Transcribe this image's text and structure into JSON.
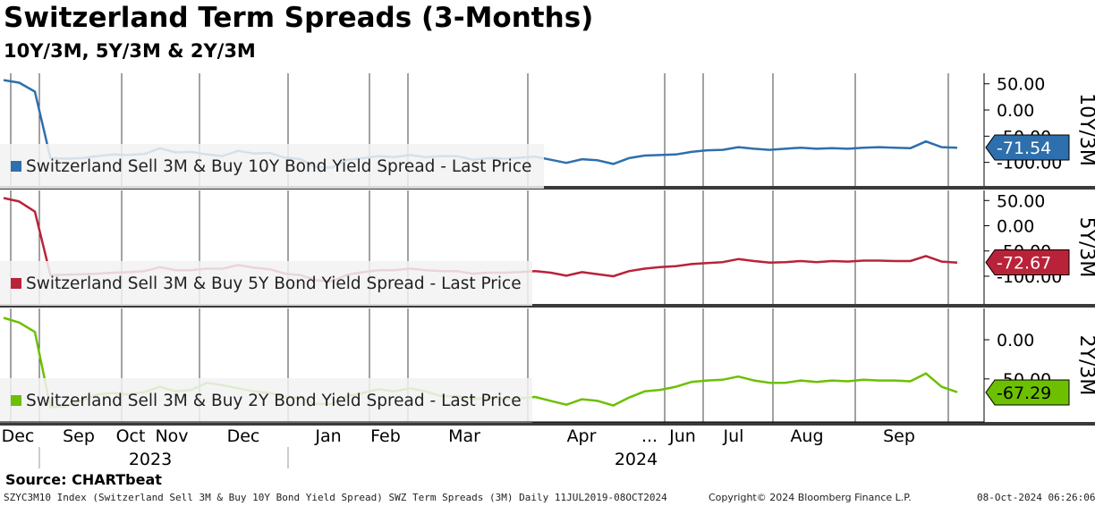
{
  "header": {
    "title": "Switzerland Term Spreads (3-Months)",
    "subtitle": "10Y/3M, 5Y/3M & 2Y/3M"
  },
  "footer": {
    "source": "Source: CHARTbeat",
    "ticker_info": "SZYC3M10 Index (Switzerland Sell 3M & Buy 10Y Bond Yield Spread) SWZ Term Spreads (3M)  Daily 11JUL2019-08OCT2024",
    "copyright": "Copyright© 2024 Bloomberg Finance L.P.",
    "timestamp": "08-Oct-2024 06:26:06"
  },
  "chart_data": {
    "type": "line",
    "x_axis": {
      "months": [
        {
          "label": "Dec",
          "date": "2022-12-01"
        },
        {
          "label": "Sep",
          "date": "2023-09-01"
        },
        {
          "label": "Oct",
          "date": "2023-10-01"
        },
        {
          "label": "Nov",
          "date": "2023-11-01"
        },
        {
          "label": "Dec",
          "date": "2023-12-01"
        },
        {
          "label": "Jan",
          "date": "2024-01-01"
        },
        {
          "label": "Feb",
          "date": "2024-02-01"
        },
        {
          "label": "Mar",
          "date": "2024-03-01"
        },
        {
          "label": "Apr",
          "date": "2024-04-01"
        },
        {
          "label": "Jun",
          "date": "2024-06-01"
        },
        {
          "label": "Jul",
          "date": "2024-07-01"
        },
        {
          "label": "Aug",
          "date": "2024-08-01"
        },
        {
          "label": "Sep",
          "date": "2024-09-01"
        }
      ],
      "break_label": "...",
      "years": [
        "2023",
        "2024"
      ]
    },
    "panels": [
      {
        "name": "10Y/3M",
        "legend": "Switzerland Sell 3M & Buy 10Y Bond Yield Spread - Last Price",
        "color": "#2e6fad",
        "last_value": "-71.54",
        "ticks": [
          "50.00",
          "0.00",
          "-50.00",
          "-100.00"
        ],
        "tick_values": [
          50,
          0,
          -50,
          -100
        ],
        "ylim": [
          -145,
          70
        ],
        "values": [
          57,
          52,
          35,
          -92,
          -93,
          -92,
          -88,
          -85,
          -86,
          -84,
          -73,
          -81,
          -80,
          -85,
          -88,
          -78,
          -83,
          -82,
          -91,
          -94,
          -109,
          -110,
          -95,
          -92,
          -88,
          -90,
          -86,
          -90,
          -88,
          -88,
          -95,
          -92,
          -93,
          -91,
          -89,
          -95,
          -101,
          -94,
          -96,
          -103,
          -92,
          -87,
          -86,
          -85,
          -80,
          -77,
          -76,
          -71,
          -74,
          -76,
          -74,
          -72,
          -74,
          -73,
          -74,
          -72,
          -71,
          -72,
          -73,
          -60,
          -71,
          -72
        ]
      },
      {
        "name": "5Y/3M",
        "legend": "Switzerland Sell 3M & Buy 5Y Bond Yield Spread - Last Price",
        "color": "#b8233a",
        "last_value": "-72.67",
        "ticks": [
          "50.00",
          "0.00",
          "-50.00",
          "-100.00"
        ],
        "tick_values": [
          50,
          0,
          -50,
          -100
        ],
        "ylim": [
          -155,
          70
        ],
        "values": [
          55,
          48,
          28,
          -98,
          -97,
          -96,
          -95,
          -93,
          -92,
          -90,
          -82,
          -88,
          -88,
          -85,
          -85,
          -78,
          -83,
          -86,
          -95,
          -98,
          -108,
          -110,
          -97,
          -92,
          -88,
          -88,
          -85,
          -88,
          -90,
          -90,
          -95,
          -93,
          -93,
          -92,
          -90,
          -93,
          -99,
          -92,
          -96,
          -100,
          -90,
          -85,
          -82,
          -80,
          -76,
          -74,
          -72,
          -66,
          -70,
          -73,
          -72,
          -70,
          -72,
          -70,
          -71,
          -69,
          -69,
          -70,
          -70,
          -60,
          -71,
          -73
        ]
      },
      {
        "name": "2Y/3M",
        "legend": "Switzerland Sell 3M & Buy 2Y Bond Yield Spread - Last Price",
        "color": "#6cc000",
        "last_value": "-67.29",
        "ticks": [
          "0.00",
          "-50.00"
        ],
        "tick_values": [
          0,
          -50
        ],
        "ylim": [
          -105,
          40
        ],
        "values": [
          28,
          22,
          10,
          -86,
          -85,
          -78,
          -70,
          -68,
          -70,
          -67,
          -60,
          -66,
          -64,
          -55,
          -58,
          -62,
          -66,
          -68,
          -74,
          -74,
          -82,
          -82,
          -72,
          -68,
          -63,
          -66,
          -62,
          -66,
          -72,
          -72,
          -76,
          -74,
          -76,
          -75,
          -73,
          -78,
          -83,
          -76,
          -78,
          -84,
          -74,
          -66,
          -64,
          -60,
          -54,
          -52,
          -51,
          -47,
          -52,
          -55,
          -55,
          -52,
          -54,
          -52,
          -53,
          -51,
          -52,
          -52,
          -53,
          -43,
          -60,
          -67
        ]
      }
    ]
  }
}
